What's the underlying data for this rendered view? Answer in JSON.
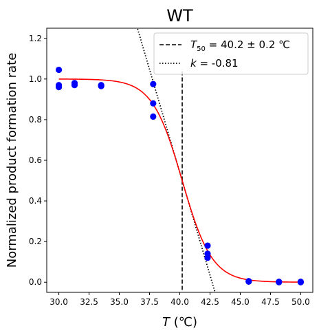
{
  "chart_data": {
    "type": "scatter",
    "title": "WT",
    "xlabel": {
      "italic": "T",
      "rest": " (℃)"
    },
    "ylabel": "Normalized product formation rate",
    "xlim": [
      29.0,
      51.0
    ],
    "ylim": [
      -0.05,
      1.25
    ],
    "xticks": [
      "30.0",
      "32.5",
      "35.0",
      "37.5",
      "40.0",
      "42.5",
      "45.0",
      "47.5",
      "50.0"
    ],
    "yticks": [
      "0.0",
      "0.2",
      "0.4",
      "0.6",
      "0.8",
      "1.0",
      "1.2"
    ],
    "grid": false,
    "legend_position": "upper-right",
    "points": {
      "color": "#0000ff",
      "x": [
        30.0,
        30.0,
        30.0,
        31.3,
        31.3,
        33.5,
        33.5,
        37.8,
        37.8,
        37.8,
        42.3,
        42.3,
        42.3,
        45.7,
        45.7,
        48.2,
        48.2,
        50.0,
        50.0
      ],
      "y": [
        1.045,
        0.97,
        0.96,
        0.98,
        0.97,
        0.97,
        0.965,
        0.975,
        0.88,
        0.815,
        0.18,
        0.14,
        0.12,
        0.005,
        0.003,
        0.002,
        0.0,
        0.002,
        0.0
      ]
    },
    "fit_curve": {
      "type": "sigmoid",
      "color": "#ff0000",
      "t50": 40.2,
      "k": -0.81,
      "x_range": [
        30.0,
        50.0
      ]
    },
    "series": [
      {
        "name": "T50",
        "label_prefix": "T",
        "label_sub": "50",
        "label_suffix": " = 40.2 ± 0.2 ℃",
        "style": "dashed",
        "color": "#000000",
        "x": 40.2
      },
      {
        "name": "k",
        "label_prefix": "k",
        "label_sub": "",
        "label_suffix": " = -0.81",
        "style": "dotted",
        "color": "#000000",
        "slope": -0.2025,
        "x0": 40.2,
        "y0": 0.5
      }
    ]
  }
}
